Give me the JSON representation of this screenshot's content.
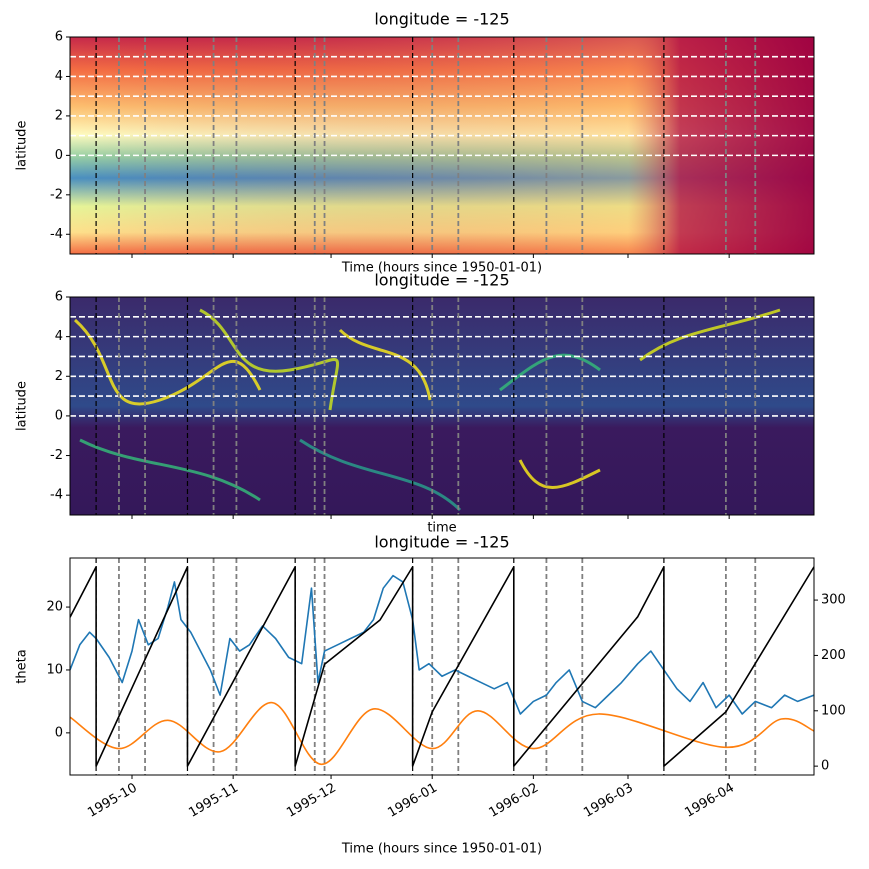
{
  "chart_data": [
    {
      "type": "heatmap",
      "title": "longitude = -125",
      "xlabel": "Time (hours since 1950-01-01)",
      "ylabel": "latitude",
      "xlim": [
        "1995-09-12",
        "1996-04-27"
      ],
      "xticks": [
        "1995-10-01",
        "1995-11-01",
        "1995-12-01",
        "1996-01-01",
        "1996-02-01",
        "1996-03-01",
        "1996-04-01"
      ],
      "ylim": [
        -5,
        6
      ],
      "yticks": [
        -4,
        -2,
        0,
        2,
        4,
        6
      ],
      "hlines": {
        "y": [
          0,
          1,
          2,
          3,
          4,
          5
        ],
        "color": "#ffffff"
      },
      "vlines": [
        {
          "x": [
            "1995-09-20",
            "1995-10-18",
            "1995-11-20",
            "1995-12-26",
            "1996-01-26",
            "1996-03-12"
          ],
          "color": "#000000"
        },
        {
          "x": [
            "1995-09-27",
            "1995-10-05",
            "1995-10-26",
            "1995-11-02",
            "1995-11-26",
            "1995-11-29",
            "1996-01-01",
            "1996-01-09",
            "1996-02-05",
            "1996-02-16",
            "1996-03-31",
            "1996-04-09"
          ],
          "color": "#808080"
        }
      ]
    },
    {
      "type": "heatmap",
      "title": "longitude = -125",
      "xlabel": "time",
      "ylabel": "latitude",
      "xlim": [
        "1995-09-12",
        "1996-04-27"
      ],
      "xticks": [
        "1995-10-01",
        "1995-11-01",
        "1995-12-01",
        "1996-01-01",
        "1996-02-01",
        "1996-03-01",
        "1996-04-01"
      ],
      "ylim": [
        -5,
        6
      ],
      "yticks": [
        -4,
        -2,
        0,
        2,
        4,
        6
      ],
      "hlines": {
        "y": [
          0,
          1,
          2,
          3,
          4,
          5
        ],
        "color": "#ffffff"
      },
      "vlines": [
        {
          "x": [
            "1995-09-20",
            "1995-10-18",
            "1995-11-20",
            "1995-12-26",
            "1996-01-26",
            "1996-03-12"
          ],
          "color": "#000000"
        },
        {
          "x": [
            "1995-09-27",
            "1995-10-05",
            "1995-10-26",
            "1995-11-02",
            "1995-11-26",
            "1995-11-29",
            "1996-01-01",
            "1996-01-09",
            "1996-02-05",
            "1996-02-16",
            "1996-03-31",
            "1996-04-09"
          ],
          "color": "#808080"
        }
      ]
    },
    {
      "type": "line",
      "title": "longitude = -125",
      "xlabel": "Time (hours since 1950-01-01)",
      "ylabel": "theta",
      "xlim": [
        "1995-09-12",
        "1996-04-27"
      ],
      "xticks": [
        {
          "value": "1995-10-01",
          "label": "1995-10"
        },
        {
          "value": "1995-11-01",
          "label": "1995-11"
        },
        {
          "value": "1995-12-01",
          "label": "1995-12"
        },
        {
          "value": "1996-01-01",
          "label": "1996-01"
        },
        {
          "value": "1996-02-01",
          "label": "1996-02"
        },
        {
          "value": "1996-03-01",
          "label": "1996-03"
        },
        {
          "value": "1996-04-01",
          "label": "1996-04"
        }
      ],
      "ylim": [
        -6.7,
        27.8
      ],
      "yticks": [
        0,
        10,
        20
      ],
      "y2lim": [
        -16,
        376
      ],
      "y2ticks": [
        0,
        100,
        200,
        300
      ],
      "series": [
        {
          "color": "#1f77b4",
          "x": [
            "1995-09-12",
            "1995-09-15",
            "1995-09-18",
            "1995-09-20",
            "1995-09-24",
            "1995-09-28",
            "1995-10-01",
            "1995-10-03",
            "1995-10-06",
            "1995-10-09",
            "1995-10-12",
            "1995-10-14",
            "1995-10-16",
            "1995-10-19",
            "1995-10-22",
            "1995-10-25",
            "1995-10-28",
            "1995-10-31",
            "1995-11-03",
            "1995-11-06",
            "1995-11-10",
            "1995-11-14",
            "1995-11-18",
            "1995-11-22",
            "1995-11-24",
            "1995-11-25",
            "1995-11-27",
            "1995-11-29",
            "1995-12-03",
            "1995-12-07",
            "1995-12-11",
            "1995-12-14",
            "1995-12-17",
            "1995-12-20",
            "1995-12-23",
            "1995-12-26",
            "1995-12-28",
            "1995-12-31",
            "1996-01-04",
            "1996-01-08",
            "1996-01-12",
            "1996-01-16",
            "1996-01-20",
            "1996-01-24",
            "1996-01-28",
            "1996-02-01",
            "1996-02-05",
            "1996-02-08",
            "1996-02-12",
            "1996-02-16",
            "1996-02-20",
            "1996-02-24",
            "1996-02-28",
            "1996-03-04",
            "1996-03-08",
            "1996-03-12",
            "1996-03-16",
            "1996-03-20",
            "1996-03-24",
            "1996-03-28",
            "1996-04-01",
            "1996-04-05",
            "1996-04-09",
            "1996-04-14",
            "1996-04-18",
            "1996-04-22",
            "1996-04-27"
          ],
          "values": [
            10,
            14,
            16,
            15,
            12,
            8,
            13,
            18,
            14,
            15,
            20,
            24,
            18,
            16,
            13,
            10,
            6,
            15,
            13,
            14,
            17,
            15,
            12,
            11,
            19,
            23,
            8,
            13,
            14,
            15,
            16,
            18,
            23,
            25,
            24,
            18,
            10,
            11,
            9,
            10,
            9,
            8,
            7,
            8,
            3,
            5,
            6,
            8,
            10,
            5,
            4,
            6,
            8,
            11,
            13,
            10,
            7,
            5,
            8,
            4,
            6,
            3,
            5,
            4,
            6,
            5,
            6
          ]
        },
        {
          "color": "#ff7f0e",
          "x": [
            "1995-09-12",
            "1995-09-27",
            "1995-10-12",
            "1995-10-28",
            "1995-11-13",
            "1995-11-28",
            "1995-12-14",
            "1996-01-01",
            "1996-01-15",
            "1996-02-01",
            "1996-02-21",
            "1996-03-31",
            "1996-04-17",
            "1996-04-27"
          ],
          "values": [
            2.5,
            -2.5,
            2,
            -3,
            4.8,
            -5,
            3.8,
            -2.5,
            3.5,
            -2.5,
            3,
            -2.3,
            2.2,
            0.3
          ]
        },
        {
          "color": "#000000",
          "axis": "y2",
          "x": [
            "1995-09-12",
            "1995-09-20",
            "1995-09-20",
            "1995-10-18",
            "1995-10-18",
            "1995-11-20",
            "1995-11-20",
            "1995-11-29",
            "1995-12-16",
            "1995-12-26",
            "1995-12-26",
            "1996-01-01",
            "1996-01-26",
            "1996-01-26",
            "1996-03-04",
            "1996-03-12",
            "1996-03-12",
            "1996-03-31",
            "1996-04-27"
          ],
          "values": [
            269,
            360,
            0,
            360,
            0,
            360,
            0,
            184,
            264,
            360,
            0,
            98,
            360,
            0,
            270,
            360,
            0,
            98,
            360
          ]
        }
      ],
      "vlines": [
        {
          "x": [
            "1995-09-20",
            "1995-10-18",
            "1995-11-20",
            "1995-12-26",
            "1996-01-26",
            "1996-03-12"
          ],
          "color": "#000000"
        },
        {
          "x": [
            "1995-09-27",
            "1995-10-05",
            "1995-10-26",
            "1995-11-02",
            "1995-11-26",
            "1995-11-29",
            "1996-01-01",
            "1996-01-09",
            "1996-02-05",
            "1996-02-16",
            "1996-03-31",
            "1996-04-09"
          ],
          "color": "#808080"
        }
      ]
    }
  ]
}
